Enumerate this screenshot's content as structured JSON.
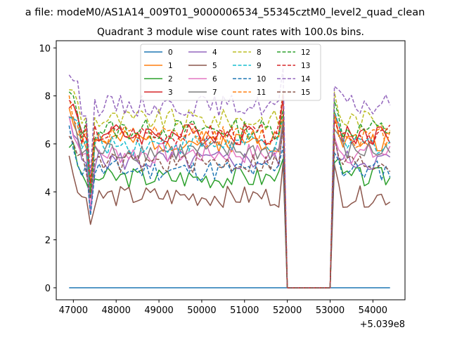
{
  "chart_data": {
    "type": "line",
    "suptitle": "a file: modeM0/AS1A14_009T01_9000006534_55345cztM0_level2_quad_clean",
    "title": "Quadrant 3 module wise count rates with 100.0s bins.",
    "xlabel": "",
    "ylabel": "",
    "x_offset_label": "+5.039e8",
    "xlim": [
      46600,
      54750
    ],
    "ylim": [
      -0.5,
      10.3
    ],
    "x_ticks": [
      47000,
      48000,
      49000,
      50000,
      51000,
      52000,
      53000,
      54000
    ],
    "x_tick_labels": [
      "47000",
      "48000",
      "49000",
      "50000",
      "51000",
      "52000",
      "53000",
      "54000"
    ],
    "y_ticks": [
      0,
      2,
      4,
      6,
      8,
      10
    ],
    "y_tick_labels": [
      "0",
      "2",
      "4",
      "6",
      "8",
      "10"
    ],
    "legend_position": "upper-center",
    "x_start": 46900,
    "x_step": 100,
    "gap_start": 52000,
    "gap_end": 53000,
    "series": [
      {
        "name": "0",
        "color": "#1f77b4",
        "dashed": false,
        "base": 0.0,
        "dip": 0.0,
        "seed": 1
      },
      {
        "name": "1",
        "color": "#ff7f0e",
        "dashed": false,
        "base": 6.1,
        "dip": 2.2,
        "seed": 2
      },
      {
        "name": "2",
        "color": "#2ca02c",
        "dashed": false,
        "base": 4.6,
        "dip": 1.1,
        "seed": 3
      },
      {
        "name": "3",
        "color": "#d62728",
        "dashed": false,
        "base": 6.4,
        "dip": 2.5,
        "seed": 4
      },
      {
        "name": "4",
        "color": "#9467bd",
        "dashed": false,
        "base": 5.3,
        "dip": 1.8,
        "seed": 5
      },
      {
        "name": "5",
        "color": "#8c564b",
        "dashed": false,
        "base": 3.8,
        "dip": 1.2,
        "seed": 6
      },
      {
        "name": "6",
        "color": "#e377c2",
        "dashed": false,
        "base": 5.6,
        "dip": 2.0,
        "seed": 7
      },
      {
        "name": "7",
        "color": "#7f7f7f",
        "dashed": false,
        "base": 5.7,
        "dip": 2.0,
        "seed": 8
      },
      {
        "name": "8",
        "color": "#bcbd22",
        "dashed": true,
        "base": 7.0,
        "dip": 2.6,
        "seed": 9
      },
      {
        "name": "9",
        "color": "#17becf",
        "dashed": true,
        "base": 6.0,
        "dip": 2.4,
        "seed": 10
      },
      {
        "name": "10",
        "color": "#1f77b4",
        "dashed": true,
        "base": 4.9,
        "dip": 1.6,
        "seed": 11
      },
      {
        "name": "11",
        "color": "#ff7f0e",
        "dashed": true,
        "base": 6.3,
        "dip": 2.3,
        "seed": 12
      },
      {
        "name": "12",
        "color": "#2ca02c",
        "dashed": true,
        "base": 6.6,
        "dip": 2.4,
        "seed": 13
      },
      {
        "name": "13",
        "color": "#d62728",
        "dashed": true,
        "base": 6.4,
        "dip": 2.3,
        "seed": 14
      },
      {
        "name": "14",
        "color": "#9467bd",
        "dashed": true,
        "base": 7.6,
        "dip": 2.7,
        "seed": 15
      },
      {
        "name": "15",
        "color": "#8c564b",
        "dashed": true,
        "base": 5.2,
        "dip": 1.8,
        "seed": 16
      }
    ]
  }
}
